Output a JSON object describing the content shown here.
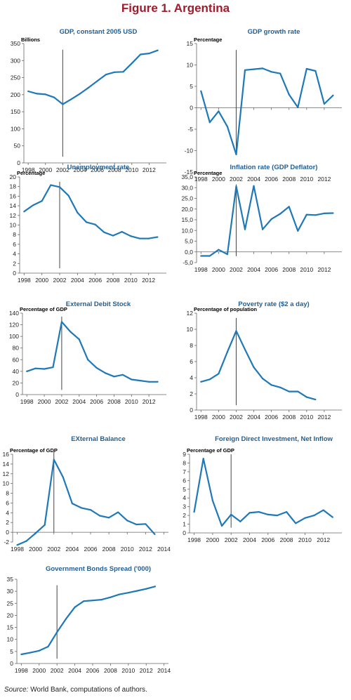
{
  "figure_title": "Figure 1. Argentina",
  "source_label": "Source:",
  "source_text": " World Bank, computations of authors.",
  "colors": {
    "title": "#a01c2c",
    "panel_title": "#1f5e96",
    "series": "#1f78b8"
  },
  "chart_data": [
    {
      "type": "line",
      "title": "GDP, constant 2005 USD",
      "ylabel": "Billions",
      "ylim": [
        0,
        350
      ],
      "yticks": [
        0,
        50,
        100,
        150,
        200,
        250,
        300,
        350
      ],
      "ytick_labels": [
        "0",
        "50",
        "100",
        "150",
        "200",
        "250",
        "300",
        "350"
      ],
      "xlim": [
        1997.5,
        2014
      ],
      "xticks": [
        1998,
        2000,
        2002,
        2004,
        2006,
        2008,
        2010,
        2012
      ],
      "xtick_labels": [
        "1998",
        "2000",
        "2002",
        "2004",
        "2006",
        "2008",
        "2010",
        "2012"
      ],
      "marker_year": 2002,
      "marker_range": [
        18,
        332
      ],
      "x": [
        1998,
        1999,
        2000,
        2001,
        2002,
        2003,
        2004,
        2005,
        2006,
        2007,
        2008,
        2009,
        2010,
        2011,
        2012,
        2013
      ],
      "values": [
        210,
        203,
        201,
        192,
        172,
        187,
        203,
        221,
        240,
        259,
        266,
        267,
        292,
        318,
        321,
        330
      ]
    },
    {
      "type": "line",
      "title": "GDP growth rate",
      "ylabel": "Percentage",
      "ylim": [
        -15,
        15
      ],
      "yticks": [
        -15,
        -10,
        -5,
        0,
        5,
        10,
        15
      ],
      "ytick_labels": [
        "-15",
        "-10",
        "-5",
        "0",
        "5",
        "10",
        "15"
      ],
      "xlim": [
        1997.5,
        2014
      ],
      "xticks": [
        1998,
        2000,
        2002,
        2004,
        2006,
        2008,
        2010,
        2012
      ],
      "xtick_labels": [
        "1998",
        "2000",
        "2002",
        "2004",
        "2006",
        "2008",
        "2010",
        "2012"
      ],
      "marker_year": 2002,
      "marker_range": [
        -11,
        13.5
      ],
      "x": [
        1998,
        1999,
        2000,
        2001,
        2002,
        2003,
        2004,
        2005,
        2006,
        2007,
        2008,
        2009,
        2010,
        2011,
        2012,
        2013
      ],
      "values": [
        3.9,
        -3.4,
        -0.8,
        -4.4,
        -10.9,
        8.8,
        9.0,
        9.2,
        8.4,
        8.0,
        3.1,
        0.1,
        9.1,
        8.6,
        0.9,
        2.9
      ]
    },
    {
      "type": "line",
      "title": "Unemployment rate",
      "ylabel": "Percentage",
      "ylim": [
        0,
        20
      ],
      "yticks": [
        0,
        2,
        4,
        6,
        8,
        10,
        12,
        14,
        16,
        18,
        20
      ],
      "ytick_labels": [
        "0",
        "2",
        "4",
        "6",
        "8",
        "10",
        "12",
        "14",
        "16",
        "18",
        "20"
      ],
      "xlim": [
        1997.5,
        2014
      ],
      "xticks": [
        1998,
        2000,
        2002,
        2004,
        2006,
        2008,
        2010,
        2012
      ],
      "xtick_labels": [
        "1998",
        "2000",
        "2002",
        "2004",
        "2006",
        "2008",
        "2010",
        "2012"
      ],
      "marker_year": 2002,
      "marker_range": [
        1,
        19
      ],
      "x": [
        1998,
        1999,
        2000,
        2001,
        2002,
        2003,
        2004,
        2005,
        2006,
        2007,
        2008,
        2009,
        2010,
        2011,
        2012,
        2013
      ],
      "values": [
        12.8,
        14.1,
        15.0,
        18.3,
        17.9,
        16.1,
        12.6,
        10.6,
        10.1,
        8.5,
        7.8,
        8.6,
        7.7,
        7.2,
        7.2,
        7.5
      ]
    },
    {
      "type": "line",
      "title": "Inflation rate (GDP Deflator)",
      "ylabel": "Percentage",
      "ylim": [
        -5,
        35
      ],
      "yticks": [
        -5,
        0,
        5,
        10,
        15,
        20,
        25,
        30,
        35
      ],
      "ytick_labels": [
        "-5,0",
        "0,0",
        "5,0",
        "10,0",
        "15,0",
        "20,0",
        "25,0",
        "30,0",
        "35,0"
      ],
      "xlim": [
        1997.5,
        2014
      ],
      "xticks": [
        1998,
        2000,
        2002,
        2004,
        2006,
        2008,
        2010,
        2012
      ],
      "xtick_labels": [
        "1998",
        "2000",
        "2002",
        "2004",
        "2006",
        "2008",
        "2010",
        "2012"
      ],
      "marker_year": 2002,
      "marker_range": [
        -2,
        31.5
      ],
      "x": [
        1998,
        1999,
        2000,
        2001,
        2002,
        2003,
        2004,
        2005,
        2006,
        2007,
        2008,
        2009,
        2010,
        2011,
        2012,
        2013
      ],
      "values": [
        -1.9,
        -1.9,
        1.0,
        -1.1,
        30.6,
        10.5,
        30.8,
        10.5,
        15.3,
        17.8,
        21.1,
        9.8,
        17.4,
        17.2,
        18.0,
        18.1
      ]
    },
    {
      "type": "line",
      "title": "External Debit Stock",
      "ylabel": "Percentage of GDP",
      "ylim": [
        0,
        140
      ],
      "yticks": [
        0,
        20,
        40,
        60,
        80,
        100,
        120,
        140
      ],
      "ytick_labels": [
        "0",
        "20",
        "40",
        "60",
        "80",
        "100",
        "120",
        "140"
      ],
      "xlim": [
        1997.5,
        2014
      ],
      "xticks": [
        1998,
        2000,
        2002,
        2004,
        2006,
        2008,
        2010,
        2012
      ],
      "xtick_labels": [
        "1998",
        "2000",
        "2002",
        "2004",
        "2006",
        "2008",
        "2010",
        "2012"
      ],
      "marker_year": 2002,
      "marker_range": [
        8,
        134
      ],
      "x": [
        1998,
        1999,
        2000,
        2001,
        2002,
        2003,
        2004,
        2005,
        2006,
        2007,
        2008,
        2009,
        2010,
        2011,
        2012,
        2013
      ],
      "values": [
        40,
        45,
        44,
        47,
        125,
        108,
        95,
        60,
        46,
        37,
        31,
        34,
        26,
        24,
        22,
        22
      ]
    },
    {
      "type": "line",
      "title": "Poverty rate ($2 a day)",
      "ylabel": "Percentage of population",
      "ylim": [
        0,
        12
      ],
      "yticks": [
        0,
        2,
        4,
        6,
        8,
        10,
        12
      ],
      "ytick_labels": [
        "0",
        "2",
        "4",
        "6",
        "8",
        "10",
        "12"
      ],
      "xlim": [
        1997.5,
        2014
      ],
      "xticks": [
        1998,
        2000,
        2002,
        2004,
        2006,
        2008,
        2010,
        2012
      ],
      "xtick_labels": [
        "1998",
        "2000",
        "2002",
        "2004",
        "2006",
        "2008",
        "2010",
        "2012"
      ],
      "marker_year": 2002,
      "marker_range": [
        0.6,
        11.4
      ],
      "x": [
        1998,
        1999,
        2000,
        2001,
        2002,
        2003,
        2004,
        2005,
        2006,
        2007,
        2008,
        2009,
        2010,
        2011
      ],
      "values": [
        3.5,
        3.8,
        4.5,
        7.2,
        9.8,
        7.5,
        5.3,
        3.9,
        3.1,
        2.8,
        2.3,
        2.3,
        1.6,
        1.3
      ]
    },
    {
      "type": "line",
      "title": "EXternal Balance",
      "ylabel": "Percentage of GDP",
      "ylim": [
        -2,
        16
      ],
      "yticks": [
        -2,
        0,
        2,
        4,
        6,
        8,
        10,
        12,
        14,
        16
      ],
      "ytick_labels": [
        "-2",
        "0",
        "2",
        "4",
        "6",
        "8",
        "10",
        "12",
        "14",
        "16"
      ],
      "xlim": [
        1997.5,
        2014.5
      ],
      "xticks": [
        1998,
        2000,
        2002,
        2004,
        2006,
        2008,
        2010,
        2012,
        2014
      ],
      "xtick_labels": [
        "1998",
        "2000",
        "2002",
        "2004",
        "2006",
        "2008",
        "2010",
        "2012",
        "2014"
      ],
      "marker_year": 2002,
      "marker_range": [
        0,
        16.5
      ],
      "x": [
        1998,
        1999,
        2000,
        2001,
        2002,
        2003,
        2004,
        2005,
        2006,
        2007,
        2008,
        2009,
        2010,
        2011,
        2012,
        2013
      ],
      "values": [
        -2.6,
        -1.8,
        -0.2,
        1.5,
        14.9,
        11.3,
        5.9,
        5.0,
        4.6,
        3.4,
        3.0,
        4.1,
        2.4,
        1.6,
        1.7,
        -0.4
      ]
    },
    {
      "type": "line",
      "title": "Foreign Direct Investment, Net Inflow",
      "ylabel": "Percentage of GDP",
      "ylim": [
        0,
        9
      ],
      "yticks": [
        0,
        1,
        2,
        3,
        4,
        5,
        6,
        7,
        8,
        9
      ],
      "ytick_labels": [
        "0",
        "1",
        "2",
        "3",
        "4",
        "5",
        "6",
        "7",
        "8",
        "9"
      ],
      "xlim": [
        1997.5,
        2014
      ],
      "xticks": [
        1998,
        2000,
        2002,
        2004,
        2006,
        2008,
        2010,
        2012
      ],
      "xtick_labels": [
        "1998",
        "2000",
        "2002",
        "2004",
        "2006",
        "2008",
        "2010",
        "2012"
      ],
      "marker_year": 2002,
      "marker_range": [
        0.6,
        9
      ],
      "x": [
        1998,
        1999,
        2000,
        2001,
        2002,
        2003,
        2004,
        2005,
        2006,
        2007,
        2008,
        2009,
        2010,
        2011,
        2012,
        2013
      ],
      "values": [
        2.4,
        8.5,
        3.7,
        0.8,
        2.1,
        1.3,
        2.3,
        2.4,
        2.1,
        2.0,
        2.4,
        1.1,
        1.7,
        2.0,
        2.6,
        1.8
      ]
    },
    {
      "type": "line",
      "title": "Government Bonds Spread ('000)",
      "ylabel": "",
      "ylim": [
        0,
        35
      ],
      "yticks": [
        0,
        5,
        10,
        15,
        20,
        25,
        30,
        35
      ],
      "ytick_labels": [
        "0",
        "5",
        "10",
        "15",
        "20",
        "25",
        "30",
        "35"
      ],
      "xlim": [
        1997.5,
        2014.5
      ],
      "xticks": [
        1998,
        2000,
        2002,
        2004,
        2006,
        2008,
        2010,
        2012,
        2014
      ],
      "xtick_labels": [
        "1998",
        "2000",
        "2002",
        "2004",
        "2006",
        "2008",
        "2010",
        "2012",
        "2014"
      ],
      "marker_year": 2002,
      "marker_range": [
        2,
        32.5
      ],
      "x": [
        1998,
        1999,
        2000,
        2001,
        2002,
        2003,
        2004,
        2005,
        2006,
        2007,
        2008,
        2009,
        2010,
        2011,
        2012,
        2013
      ],
      "values": [
        3.8,
        4.5,
        5.3,
        7.0,
        13.0,
        18.5,
        23.4,
        25.9,
        26.2,
        26.5,
        27.5,
        28.7,
        29.4,
        30.2,
        31.0,
        32.0
      ]
    }
  ]
}
